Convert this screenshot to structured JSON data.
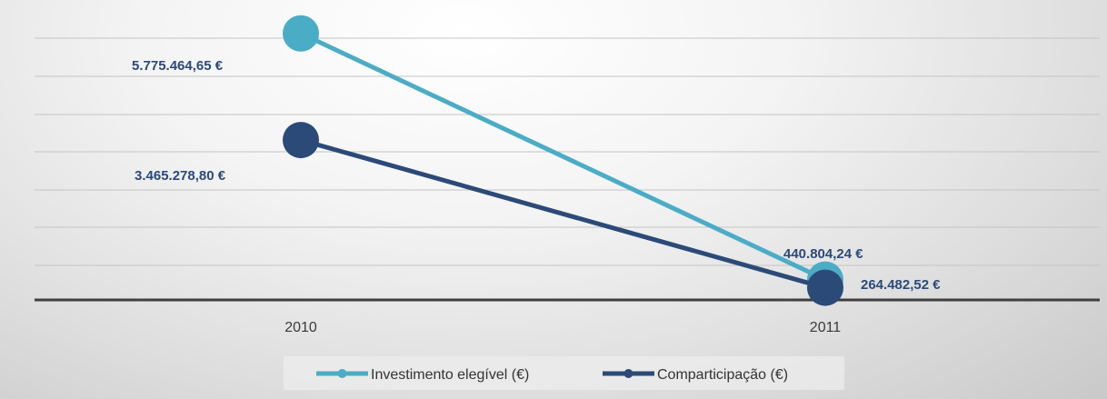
{
  "chart_data": {
    "type": "line",
    "categories": [
      "2010",
      "2011"
    ],
    "series": [
      {
        "name": "Investimento elegível (€)",
        "color": "#4bacc6",
        "values": [
          5775464.65,
          440804.24
        ],
        "labels": [
          "5.775.464,65 €",
          "440.804,24 €"
        ]
      },
      {
        "name": "Comparticipação (€)",
        "color": "#2b4a78",
        "values": [
          3465278.8,
          264482.52
        ],
        "labels": [
          "3.465.278,80 €",
          "264.482,52 €"
        ]
      }
    ],
    "ylim": [
      0,
      6500000
    ],
    "grid": true,
    "legend": "bottom"
  }
}
